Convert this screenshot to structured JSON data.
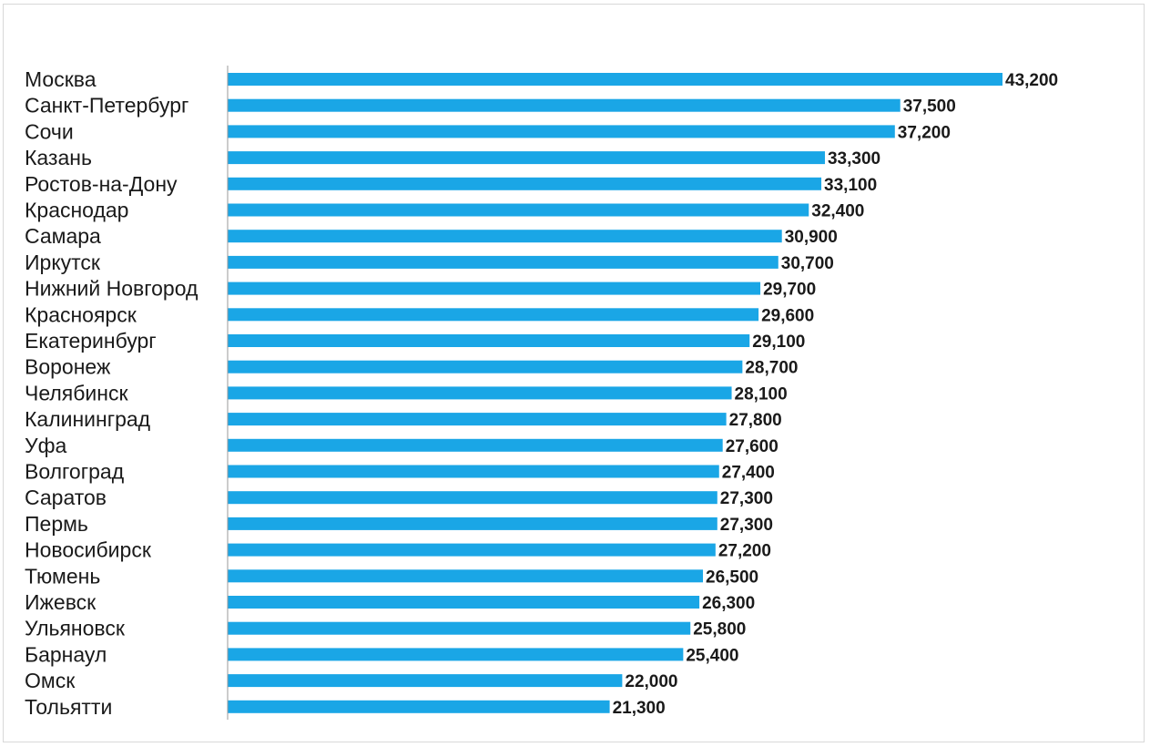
{
  "chart_data": {
    "type": "bar",
    "orientation": "horizontal",
    "title": "",
    "xlabel": "",
    "ylabel": "",
    "grid": false,
    "legend": "none",
    "bar_color": "#1aa6e6",
    "xlim": [
      0,
      43200
    ],
    "categories": [
      "Москва",
      "Санкт-Петербург",
      "Сочи",
      "Казань",
      "Ростов-на-Дону",
      "Краснодар",
      "Самара",
      "Иркутск",
      "Нижний Новгород",
      "Красноярск",
      "Екатеринбург",
      "Воронеж",
      "Челябинск",
      "Калининград",
      "Уфа",
      "Волгоград",
      "Саратов",
      "Пермь",
      "Новосибирск",
      "Тюмень",
      "Ижевск",
      "Ульяновск",
      "Барнаул",
      "Омск",
      "Тольятти"
    ],
    "values": [
      43200,
      37500,
      37200,
      33300,
      33100,
      32400,
      30900,
      30700,
      29700,
      29600,
      29100,
      28700,
      28100,
      27800,
      27600,
      27400,
      27300,
      27300,
      27200,
      26500,
      26300,
      25800,
      25400,
      22000,
      21300
    ],
    "value_labels": [
      "43,200",
      "37,500",
      "37,200",
      "33,300",
      "33,100",
      "32,400",
      "30,900",
      "30,700",
      "29,700",
      "29,600",
      "29,100",
      "28,700",
      "28,100",
      "27,800",
      "27,600",
      "27,400",
      "27,300",
      "27,300",
      "27,200",
      "26,500",
      "26,300",
      "25,800",
      "25,400",
      "22,000",
      "21,300"
    ]
  }
}
